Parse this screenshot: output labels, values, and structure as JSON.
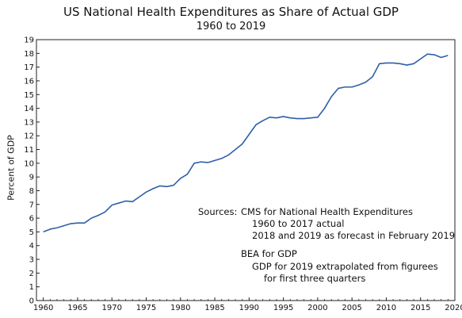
{
  "chart_data": {
    "type": "line",
    "title": "US National Health Expenditures as Share of Actual GDP",
    "subtitle": "1960 to 2019",
    "xlabel": "",
    "ylabel": "Percent of GDP",
    "xlim": [
      1959,
      2020
    ],
    "ylim": [
      0,
      19
    ],
    "xticks": [
      1960,
      1965,
      1970,
      1975,
      1980,
      1985,
      1990,
      1995,
      2000,
      2005,
      2010,
      2015,
      2020
    ],
    "yticks": [
      0,
      1,
      2,
      3,
      4,
      5,
      6,
      7,
      8,
      9,
      10,
      11,
      12,
      13,
      14,
      15,
      16,
      17,
      18,
      19
    ],
    "grid": false,
    "line_color": "#2f5fa8",
    "x": [
      1960,
      1961,
      1962,
      1963,
      1964,
      1965,
      1966,
      1967,
      1968,
      1969,
      1970,
      1971,
      1972,
      1973,
      1974,
      1975,
      1976,
      1977,
      1978,
      1979,
      1980,
      1981,
      1982,
      1983,
      1984,
      1985,
      1986,
      1987,
      1988,
      1989,
      1990,
      1991,
      1992,
      1993,
      1994,
      1995,
      1996,
      1997,
      1998,
      1999,
      2000,
      2001,
      2002,
      2003,
      2004,
      2005,
      2006,
      2007,
      2008,
      2009,
      2010,
      2011,
      2012,
      2013,
      2014,
      2015,
      2016,
      2017,
      2018,
      2019
    ],
    "series": [
      {
        "values": [
          5.0,
          5.2,
          5.3,
          5.45,
          5.6,
          5.65,
          5.65,
          6.0,
          6.2,
          6.45,
          6.95,
          7.1,
          7.25,
          7.2,
          7.55,
          7.9,
          8.15,
          8.35,
          8.3,
          8.4,
          8.9,
          9.2,
          10.0,
          10.1,
          10.05,
          10.2,
          10.35,
          10.6,
          11.0,
          11.4,
          12.1,
          12.8,
          13.1,
          13.35,
          13.3,
          13.4,
          13.3,
          13.25,
          13.25,
          13.3,
          13.35,
          14.0,
          14.85,
          15.45,
          15.55,
          15.55,
          15.7,
          15.9,
          16.3,
          17.25,
          17.3,
          17.3,
          17.25,
          17.15,
          17.25,
          17.6,
          17.95,
          17.9,
          17.7,
          17.85
        ]
      }
    ],
    "annotations": {
      "sources_label": "Sources:",
      "line1": "CMS for National Health Expenditures",
      "line2": "1960 to 2017 actual",
      "line3": "2018 and 2019 as forecast in February 2019",
      "line4": "BEA for GDP",
      "line5": "GDP for 2019 extrapolated from figurees",
      "line6": "for first three quarters"
    }
  }
}
